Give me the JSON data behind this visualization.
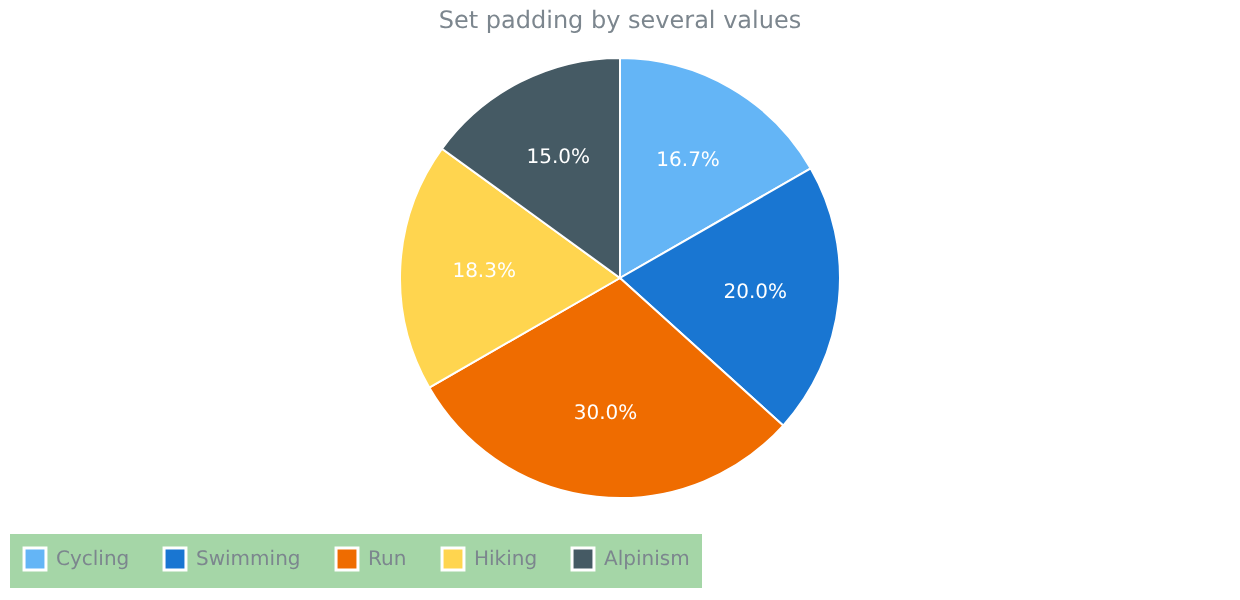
{
  "chart_data": {
    "type": "pie",
    "title": "Set padding by several values",
    "categories": [
      "Cycling",
      "Swimming",
      "Run",
      "Hiking",
      "Alpinism"
    ],
    "values": [
      16.7,
      20.0,
      30.0,
      18.3,
      15.0
    ],
    "colors": [
      "#64b5f6",
      "#1976d2",
      "#ef6c00",
      "#ffd54f",
      "#455a64"
    ],
    "value_labels": [
      "16.7%",
      "20.0%",
      "30.0%",
      "18.3%",
      "15.0%"
    ],
    "legend": "bottom"
  }
}
